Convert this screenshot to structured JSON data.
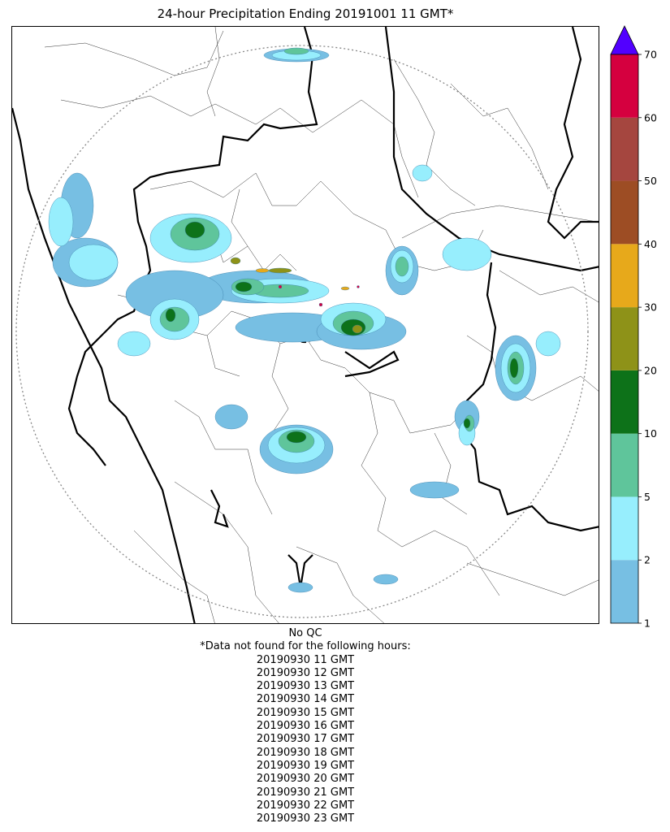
{
  "title": "24-hour Precipitation Ending 20191001 11 GMT*",
  "colorbar": {
    "levels": [
      {
        "label": "1",
        "color": "#77bfe3"
      },
      {
        "label": "2",
        "color": "#97eefd"
      },
      {
        "label": "5",
        "color": "#5fc59b"
      },
      {
        "label": "10",
        "color": "#0d7219"
      },
      {
        "label": "20",
        "color": "#8e9218"
      },
      {
        "label": "30",
        "color": "#e7a91b"
      },
      {
        "label": "40",
        "color": "#9d4d24"
      },
      {
        "label": "50",
        "color": "#a5463f"
      },
      {
        "label": "60",
        "color": "#d5003f"
      },
      {
        "label": "70",
        "color": ""
      }
    ],
    "extend_color": "#5200ff"
  },
  "qc_text": "No QC",
  "missing_header": "*Data not found for the following hours:",
  "missing_hours": [
    "20190930 11 GMT",
    "20190930 12 GMT",
    "20190930 13 GMT",
    "20190930 14 GMT",
    "20190930 15 GMT",
    "20190930 16 GMT",
    "20190930 17 GMT",
    "20190930 18 GMT",
    "20190930 19 GMT",
    "20190930 20 GMT",
    "20190930 21 GMT",
    "20190930 22 GMT",
    "20190930 23 GMT"
  ]
}
